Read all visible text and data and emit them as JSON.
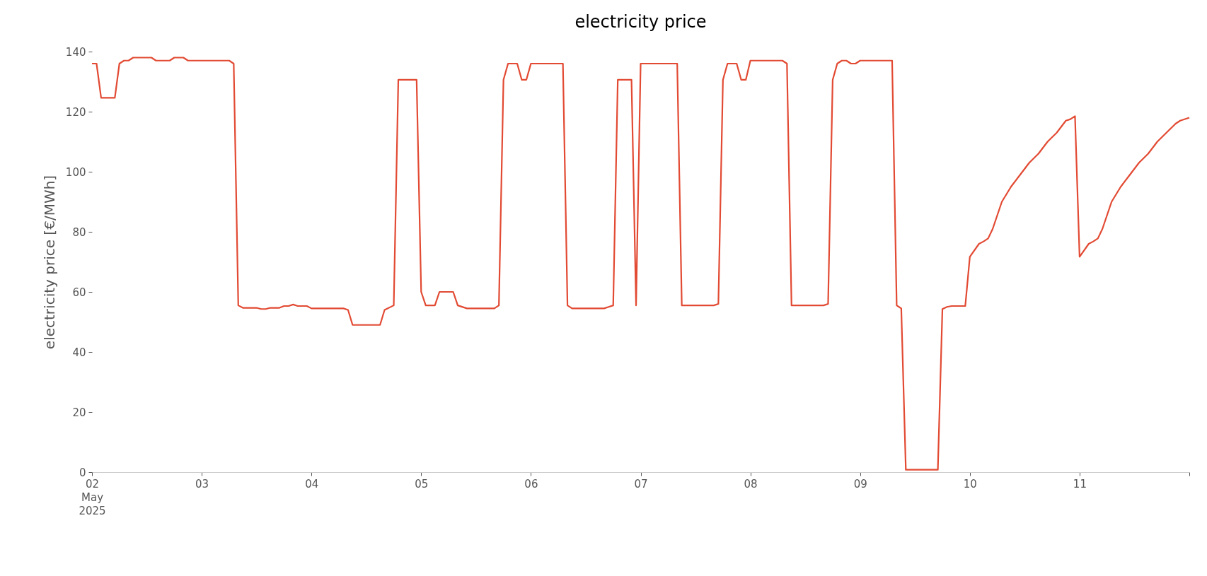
{
  "chart_data": {
    "type": "line",
    "title": "electricity price",
    "ylabel": "electricity price [€/MWh]",
    "x": [
      "2025-05-02T00:00",
      "2025-05-02T01:00",
      "2025-05-02T02:00",
      "2025-05-02T05:00",
      "2025-05-02T06:00",
      "2025-05-02T07:00",
      "2025-05-02T08:00",
      "2025-05-02T09:00",
      "2025-05-02T13:00",
      "2025-05-02T14:00",
      "2025-05-02T17:00",
      "2025-05-02T18:00",
      "2025-05-02T20:00",
      "2025-05-02T21:00",
      "2025-05-03T06:00",
      "2025-05-03T07:00",
      "2025-05-03T08:00",
      "2025-05-03T09:00",
      "2025-05-03T12:00",
      "2025-05-03T13:00",
      "2025-05-03T14:00",
      "2025-05-03T15:00",
      "2025-05-03T17:00",
      "2025-05-03T18:00",
      "2025-05-03T19:00",
      "2025-05-03T20:00",
      "2025-05-03T21:00",
      "2025-05-03T23:00",
      "2025-05-04T00:00",
      "2025-05-04T07:00",
      "2025-05-04T08:00",
      "2025-05-04T09:00",
      "2025-05-04T15:00",
      "2025-05-04T16:00",
      "2025-05-04T18:00",
      "2025-05-04T19:00",
      "2025-05-04T23:00",
      "2025-05-05T00:00",
      "2025-05-05T01:00",
      "2025-05-05T03:00",
      "2025-05-05T04:00",
      "2025-05-05T07:00",
      "2025-05-05T08:00",
      "2025-05-05T10:00",
      "2025-05-05T16:00",
      "2025-05-05T17:00",
      "2025-05-05T18:00",
      "2025-05-05T19:00",
      "2025-05-05T21:00",
      "2025-05-05T22:00",
      "2025-05-05T23:00",
      "2025-05-06T00:00",
      "2025-05-06T07:00",
      "2025-05-06T08:00",
      "2025-05-06T09:00",
      "2025-05-06T16:00",
      "2025-05-06T17:00",
      "2025-05-06T18:00",
      "2025-05-06T19:00",
      "2025-05-06T22:00",
      "2025-05-06T23:00",
      "2025-05-07T00:00",
      "2025-05-07T08:00",
      "2025-05-07T09:00",
      "2025-05-07T16:00",
      "2025-05-07T17:00",
      "2025-05-07T18:00",
      "2025-05-07T19:00",
      "2025-05-07T21:00",
      "2025-05-07T22:00",
      "2025-05-07T23:00",
      "2025-05-08T00:00",
      "2025-05-08T07:00",
      "2025-05-08T08:00",
      "2025-05-08T09:00",
      "2025-05-08T16:00",
      "2025-05-08T17:00",
      "2025-05-08T18:00",
      "2025-05-08T19:00",
      "2025-05-08T20:00",
      "2025-05-08T21:00",
      "2025-05-08T22:00",
      "2025-05-08T23:00",
      "2025-05-09T00:00",
      "2025-05-09T07:00",
      "2025-05-09T08:00",
      "2025-05-09T09:00",
      "2025-05-09T10:00",
      "2025-05-09T17:00",
      "2025-05-09T18:00",
      "2025-05-09T19:00",
      "2025-05-09T20:00",
      "2025-05-09T23:00",
      "2025-05-10T00:00",
      "2025-05-10T02:00",
      "2025-05-10T03:00",
      "2025-05-10T04:00",
      "2025-05-10T05:00",
      "2025-05-10T07:00",
      "2025-05-10T09:00",
      "2025-05-10T11:00",
      "2025-05-10T13:00",
      "2025-05-10T15:00",
      "2025-05-10T17:00",
      "2025-05-10T19:00",
      "2025-05-10T21:00",
      "2025-05-10T22:00",
      "2025-05-10T23:00",
      "2025-05-11T00:00",
      "2025-05-11T02:00",
      "2025-05-11T03:00",
      "2025-05-11T04:00",
      "2025-05-11T05:00",
      "2025-05-11T07:00",
      "2025-05-11T09:00",
      "2025-05-11T11:00",
      "2025-05-11T13:00",
      "2025-05-11T15:00",
      "2025-05-11T17:00",
      "2025-05-11T19:00",
      "2025-05-11T21:00",
      "2025-05-11T22:00",
      "2025-05-12T00:00"
    ],
    "series": [
      {
        "color": "#e24a33",
        "values": [
          136,
          136,
          124.6,
          124.6,
          136,
          137,
          137,
          138,
          138,
          137,
          137,
          138,
          138,
          137,
          137,
          136,
          55.5,
          54.7,
          54.7,
          54.3,
          54.3,
          54.7,
          54.7,
          55.3,
          55.3,
          55.8,
          55.3,
          55.3,
          54.5,
          54.5,
          54,
          49,
          49,
          54,
          55.5,
          130.6,
          130.6,
          60,
          55.5,
          55.5,
          60,
          60,
          55.5,
          54.5,
          54.5,
          55.5,
          130.6,
          136,
          136,
          130.6,
          130.6,
          136,
          136,
          55.5,
          54.5,
          54.5,
          55,
          55.5,
          130.6,
          130.6,
          55.5,
          136,
          136,
          55.5,
          55.5,
          56,
          130.6,
          136,
          136,
          130.6,
          130.6,
          137,
          137,
          136,
          55.5,
          55.5,
          56,
          130.6,
          136,
          137,
          137,
          136,
          136,
          137,
          137,
          55.5,
          54.5,
          0.8,
          0.8,
          54.3,
          55,
          55.3,
          55.3,
          71.7,
          76,
          76.8,
          77.8,
          81,
          90,
          95,
          99,
          103,
          106,
          110,
          113,
          117,
          117.5,
          118.5,
          71.7,
          76,
          76.8,
          77.8,
          81,
          90,
          95,
          99,
          103,
          106,
          110,
          113,
          116,
          117,
          118
        ]
      }
    ],
    "xlim": [
      "2025-05-02T00:00",
      "2025-05-12T00:00"
    ],
    "xticks": [
      {
        "value": "2025-05-02T00:00",
        "label": "02\nMay\n2025"
      },
      {
        "value": "2025-05-03T00:00",
        "label": "03"
      },
      {
        "value": "2025-05-04T00:00",
        "label": "04"
      },
      {
        "value": "2025-05-05T00:00",
        "label": "05"
      },
      {
        "value": "2025-05-06T00:00",
        "label": "06"
      },
      {
        "value": "2025-05-07T00:00",
        "label": "07"
      },
      {
        "value": "2025-05-08T00:00",
        "label": "08"
      },
      {
        "value": "2025-05-09T00:00",
        "label": "09"
      },
      {
        "value": "2025-05-10T00:00",
        "label": "10"
      },
      {
        "value": "2025-05-11T00:00",
        "label": "11"
      },
      {
        "value": "2025-05-12T00:00",
        "label": null
      }
    ],
    "ylim": [
      0,
      140
    ],
    "yticks": [
      0,
      20,
      40,
      60,
      80,
      100,
      120,
      140
    ],
    "grid": false
  }
}
